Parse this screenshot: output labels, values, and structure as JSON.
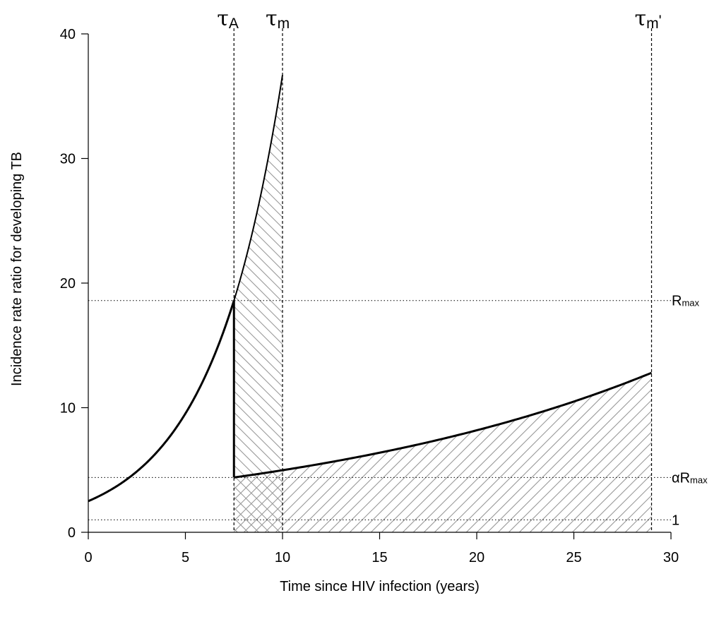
{
  "chart_data": {
    "type": "line",
    "xlabel": "Time since HIV infection (years)",
    "ylabel": "Incidence rate ratio for developing TB",
    "xlim": [
      0,
      30
    ],
    "ylim": [
      0,
      40
    ],
    "x_ticks": [
      0,
      5,
      10,
      15,
      20,
      25,
      30
    ],
    "y_ticks": [
      0,
      10,
      20,
      30,
      40
    ],
    "grid": false,
    "curves": [
      {
        "x_range": [
          0,
          7.5
        ],
        "y_start": 2.5,
        "y_end": 18.6,
        "weight": "bold"
      },
      {
        "x_range": [
          7.5,
          10
        ],
        "y_start": 18.6,
        "y_end": 36.7,
        "weight": "thin"
      },
      {
        "x_range": [
          7.5,
          29
        ],
        "y_start": 4.4,
        "y_end": 12.8,
        "weight": "bold"
      }
    ],
    "drop_line": {
      "x": 7.5,
      "y_from": 18.6,
      "y_to": 4.4
    },
    "hatched_regions": [
      {
        "x_range": [
          7.5,
          10
        ],
        "follows_curve": 1,
        "direction": "backslash"
      },
      {
        "x_range": [
          7.5,
          29
        ],
        "follows_curve": 2,
        "direction": "slash"
      }
    ],
    "horizontal_refs": [
      {
        "y": 18.6,
        "symbol": "R",
        "subscript": "max"
      },
      {
        "y": 4.4,
        "symbol": "αR",
        "subscript": "max"
      },
      {
        "y": 1,
        "symbol": "1",
        "subscript": ""
      }
    ],
    "vertical_refs": [
      {
        "x": 7.5,
        "symbol": "τ",
        "subscript": "A",
        "prime": ""
      },
      {
        "x": 10,
        "symbol": "τ",
        "subscript": "m",
        "prime": ""
      },
      {
        "x": 29,
        "symbol": "τ",
        "subscript": "m",
        "prime": "'"
      }
    ],
    "colors": {
      "line": "#000000",
      "hatch": "#999999"
    }
  }
}
